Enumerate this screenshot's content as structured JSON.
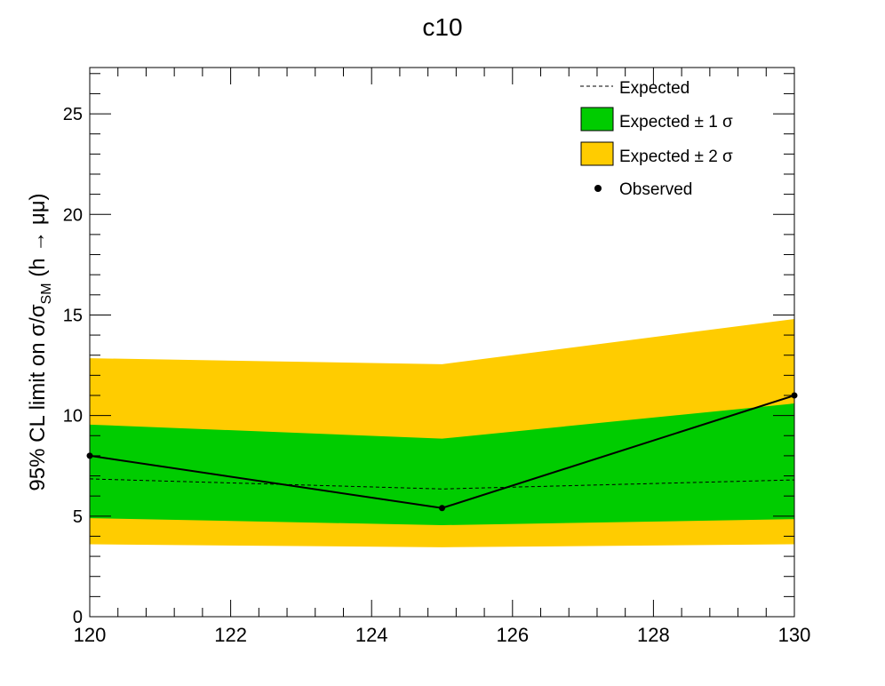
{
  "chart_data": {
    "type": "line",
    "title": "c10",
    "ylabel_main": "95% CL limit on σ/σ",
    "ylabel_sub": "SM",
    "ylabel_tail": " (h → μμ)",
    "xlim": [
      120,
      130
    ],
    "ylim": [
      0,
      27.3
    ],
    "x_ticks": [
      120,
      122,
      124,
      126,
      128,
      130
    ],
    "x_tick_labels": [
      "120",
      "122",
      "124",
      "126",
      "128",
      "130"
    ],
    "y_ticks": [
      0,
      5,
      10,
      15,
      20,
      25
    ],
    "y_tick_labels": [
      "0",
      "5",
      "10",
      "15",
      "20",
      "25"
    ],
    "x": [
      120,
      125,
      130
    ],
    "series": [
      {
        "name": "Expected",
        "values": [
          6.85,
          6.35,
          6.8
        ]
      },
      {
        "name": "Observed",
        "values": [
          8.0,
          5.4,
          11.0
        ]
      }
    ],
    "bands": {
      "one_sigma": {
        "low": [
          4.9,
          4.55,
          4.85
        ],
        "high": [
          9.55,
          8.85,
          10.6
        ]
      },
      "two_sigma": {
        "low": [
          3.6,
          3.45,
          3.6
        ],
        "high": [
          12.85,
          12.55,
          14.8
        ]
      }
    },
    "legend": {
      "position": "top-right",
      "expected": "Expected",
      "one_sigma": "Expected ± 1 σ",
      "two_sigma": "Expected ± 2 σ",
      "observed": "Observed"
    },
    "colors": {
      "one_sigma": "#00cc00",
      "two_sigma": "#ffcc00",
      "line": "#000000"
    },
    "grid": false
  }
}
